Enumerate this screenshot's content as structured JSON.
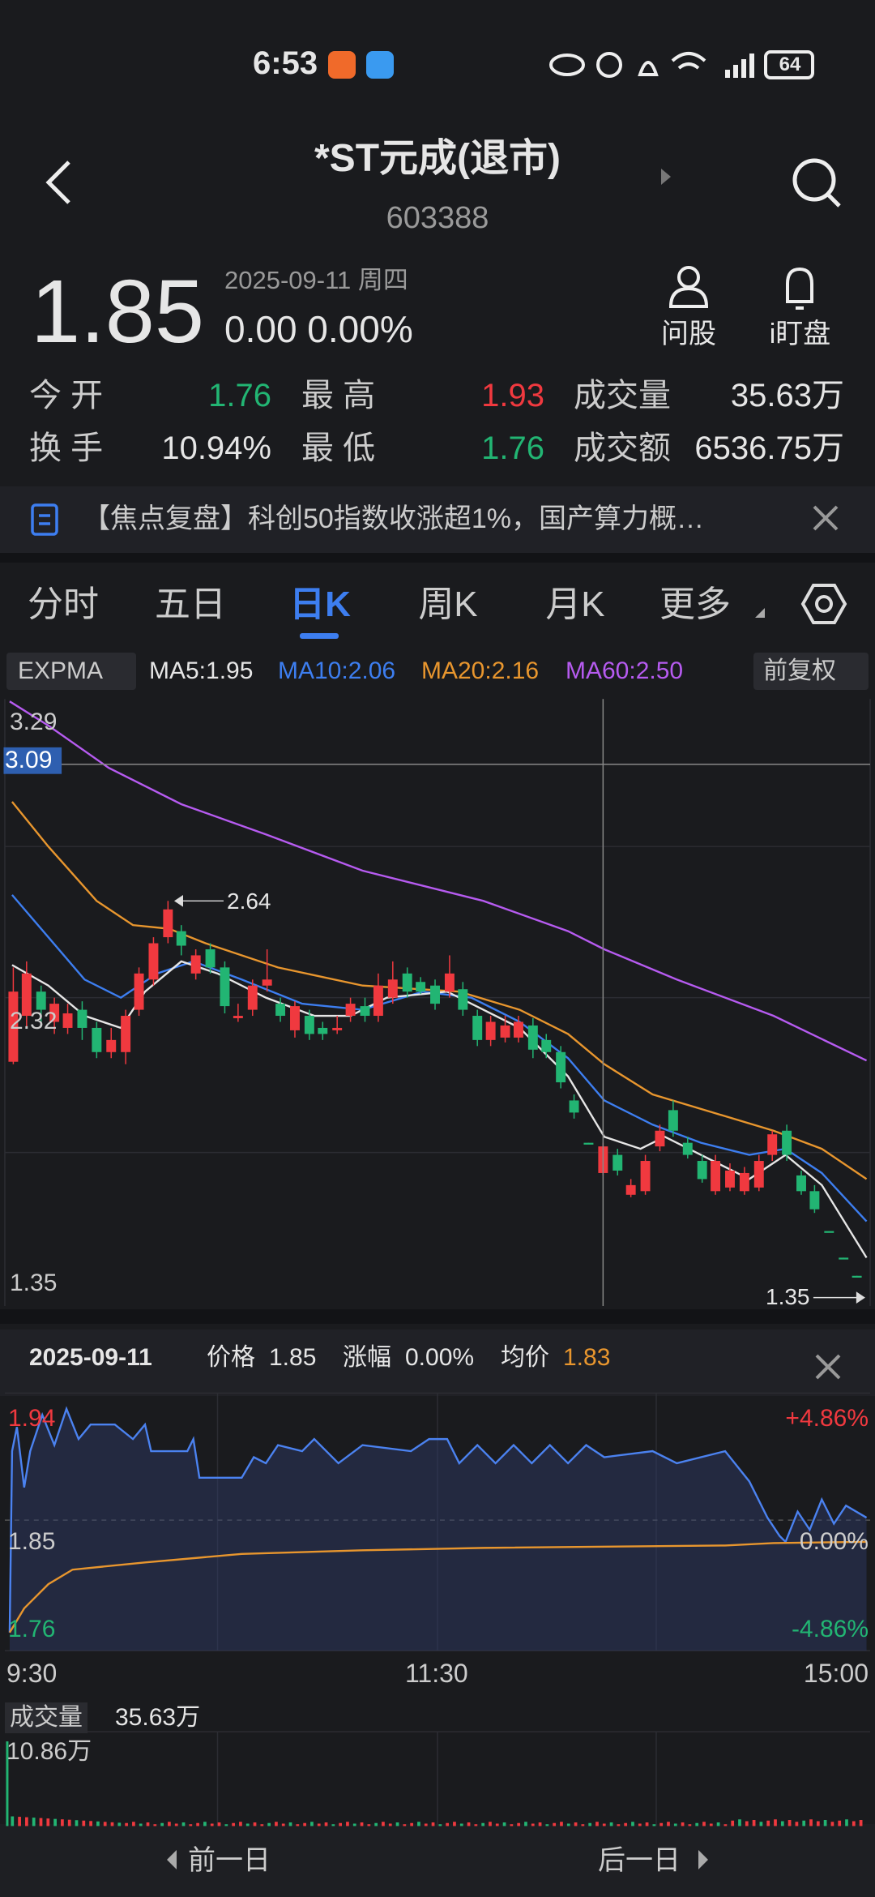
{
  "status_bar": {
    "time": "6:53",
    "battery": "64"
  },
  "header": {
    "title": "*ST元成(退市)",
    "code": "603388"
  },
  "quote": {
    "price": "1.85",
    "date": "2025-09-11 周四",
    "change": "0.00 0.00%"
  },
  "actions": [
    "问股",
    "i盯盘"
  ],
  "stats": {
    "rows": [
      [
        {
          "label": "今 开",
          "value": "1.76"
        },
        {
          "label": "最 高",
          "value": "1.93"
        },
        {
          "label": "成交量",
          "value": "35.63万"
        }
      ],
      [
        {
          "label": "换 手",
          "value": "10.94%"
        },
        {
          "label": "最 低",
          "value": "1.76"
        },
        {
          "label": "成交额",
          "value": "6536.75万"
        }
      ]
    ]
  },
  "news": "【焦点复盘】科创50指数收涨超1%，国产算力概…",
  "tabs": [
    "分时",
    "五日",
    "日K",
    "周K",
    "月K",
    "更多"
  ],
  "indicators": {
    "name": "EXPMA",
    "ma": [
      "MA5:1.95",
      "MA10:2.06",
      "MA20:2.16",
      "MA60:2.50"
    ],
    "adjust": "前复权"
  },
  "kline": {
    "axis_labels": [
      "3.29",
      "3.09",
      "2.32",
      "1.35"
    ],
    "high_label": "2.64",
    "low_label": "1.35"
  },
  "intraday": {
    "date": "2025-09-11",
    "price_label": "价格",
    "price": "1.85",
    "change_label": "涨幅",
    "change": "0.00%",
    "avg_label": "均价",
    "avg": "1.83",
    "left_labels": [
      "1.94",
      "1.85",
      "1.76"
    ],
    "right_labels": [
      "+4.86%",
      "0.00%",
      "-4.86%"
    ],
    "times": [
      "9:30",
      "11:30",
      "15:00"
    ],
    "volume_label": "成交量",
    "volume": "35.63万",
    "volume_max": "10.86万"
  },
  "nav": [
    "前一日",
    "后一日"
  ]
}
